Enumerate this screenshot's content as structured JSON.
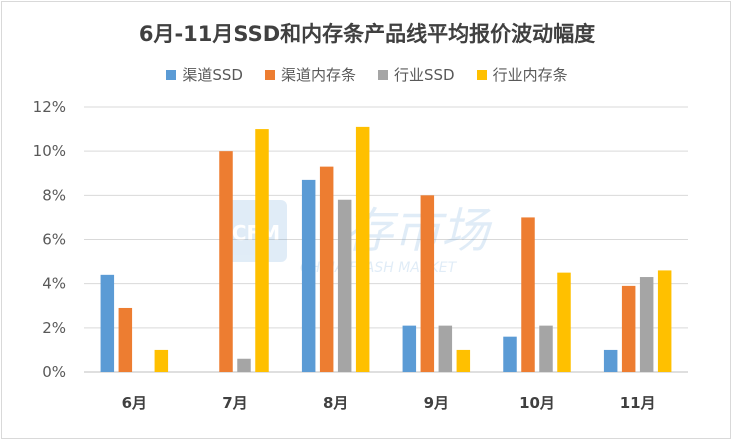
{
  "chart_data": {
    "type": "bar",
    "title": "6月-11月SSD和内存条产品线平均报价波动幅度",
    "categories": [
      "6月",
      "7月",
      "8月",
      "9月",
      "10月",
      "11月"
    ],
    "series": [
      {
        "name": "渠道SSD",
        "color": "#5b9bd5",
        "values": [
          4.4,
          null,
          8.7,
          2.1,
          1.6,
          1.0
        ]
      },
      {
        "name": "渠道内存条",
        "color": "#ed7d31",
        "values": [
          2.9,
          10.0,
          9.3,
          8.0,
          7.0,
          3.9
        ]
      },
      {
        "name": "行业SSD",
        "color": "#a5a5a5",
        "values": [
          null,
          0.6,
          7.8,
          2.1,
          2.1,
          4.3
        ]
      },
      {
        "name": "行业内存条",
        "color": "#ffc000",
        "values": [
          1.0,
          11.0,
          11.1,
          1.0,
          4.5,
          4.6
        ]
      }
    ],
    "ylim": [
      0,
      12
    ],
    "yticks": [
      "0%",
      "2%",
      "4%",
      "6%",
      "8%",
      "10%",
      "12%"
    ],
    "grid": true,
    "legend_position": "top"
  },
  "watermark": {
    "main": "存市场",
    "sub": "CHINA FLASH MARKET",
    "logo": "CFM"
  }
}
